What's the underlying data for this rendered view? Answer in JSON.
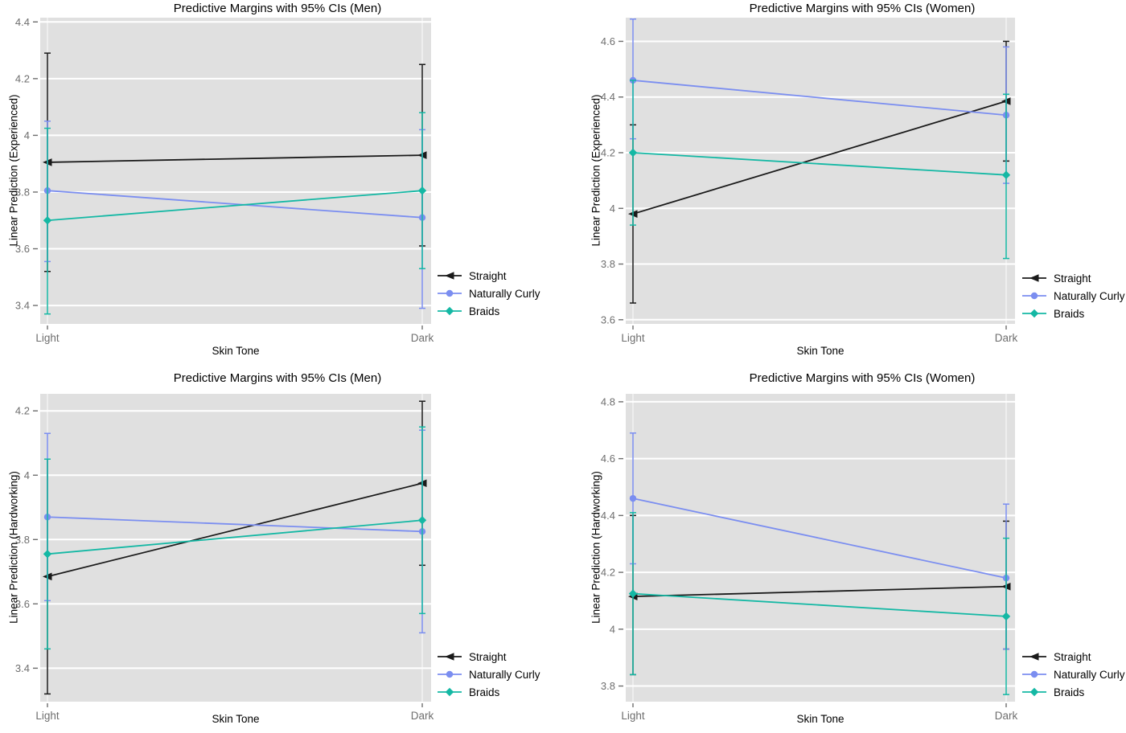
{
  "figure": {
    "background": "#ffffff",
    "plot_background": "#e0e0e0",
    "gridline_color": "#ffffff",
    "tick_label_color": "#6e6e6e",
    "text_color": "#000000"
  },
  "legend": {
    "items": [
      {
        "label": "Straight",
        "color": "#1a1a1a",
        "marker": "triangle-left"
      },
      {
        "label": "Naturally Curly",
        "color": "#7b8ef0",
        "marker": "circle"
      },
      {
        "label": "Braids",
        "color": "#14b8a4",
        "marker": "diamond"
      }
    ]
  },
  "chart_data": [
    {
      "type": "line",
      "title": "Predictive Margins with 95% CIs (Men)",
      "xlabel": "Skin Tone",
      "ylabel": "Linear Prediction (Experienced)",
      "categories": [
        "Light",
        "Dark"
      ],
      "yticks": [
        3.4,
        3.6,
        3.8,
        4.0,
        4.2,
        4.4
      ],
      "ylim": [
        3.335,
        4.415
      ],
      "grid": true,
      "legend_position": "right",
      "error_bars": "95% CI",
      "series": [
        {
          "name": "Straight",
          "color": "#1a1a1a",
          "marker": "triangle-left",
          "values": [
            3.905,
            3.93
          ],
          "ci_low": [
            3.52,
            3.61
          ],
          "ci_high": [
            4.29,
            4.25
          ]
        },
        {
          "name": "Naturally Curly",
          "color": "#7b8ef0",
          "marker": "circle",
          "values": [
            3.805,
            3.71
          ],
          "ci_low": [
            3.555,
            3.39
          ],
          "ci_high": [
            4.05,
            4.02
          ]
        },
        {
          "name": "Braids",
          "color": "#14b8a4",
          "marker": "diamond",
          "values": [
            3.7,
            3.805
          ],
          "ci_low": [
            3.37,
            3.53
          ],
          "ci_high": [
            4.025,
            4.08
          ]
        }
      ]
    },
    {
      "type": "line",
      "title": "Predictive Margins with 95% CIs (Women)",
      "xlabel": "Skin Tone",
      "ylabel": "Linear Prediction (Experienced)",
      "categories": [
        "Light",
        "Dark"
      ],
      "yticks": [
        3.6,
        3.8,
        4.0,
        4.2,
        4.4,
        4.6
      ],
      "ylim": [
        3.585,
        4.685
      ],
      "grid": true,
      "legend_position": "right",
      "error_bars": "95% CI",
      "series": [
        {
          "name": "Straight",
          "color": "#1a1a1a",
          "marker": "triangle-left",
          "values": [
            3.98,
            4.385
          ],
          "ci_low": [
            3.66,
            4.17
          ],
          "ci_high": [
            4.3,
            4.6
          ]
        },
        {
          "name": "Naturally Curly",
          "color": "#7b8ef0",
          "marker": "circle",
          "values": [
            4.46,
            4.335
          ],
          "ci_low": [
            4.25,
            4.09
          ],
          "ci_high": [
            4.68,
            4.58
          ]
        },
        {
          "name": "Braids",
          "color": "#14b8a4",
          "marker": "diamond",
          "values": [
            4.2,
            4.12
          ],
          "ci_low": [
            3.94,
            3.82
          ],
          "ci_high": [
            4.46,
            4.41
          ]
        }
      ]
    },
    {
      "type": "line",
      "title": "Predictive Margins with 95% CIs (Men)",
      "xlabel": "Skin Tone",
      "ylabel": "Linear Prediction (Hardworking)",
      "categories": [
        "Light",
        "Dark"
      ],
      "yticks": [
        3.4,
        3.6,
        3.8,
        4.0,
        4.2
      ],
      "ylim": [
        3.296,
        4.253
      ],
      "grid": true,
      "legend_position": "right",
      "error_bars": "95% CI",
      "series": [
        {
          "name": "Straight",
          "color": "#1a1a1a",
          "marker": "triangle-left",
          "values": [
            3.685,
            3.975
          ],
          "ci_low": [
            3.32,
            3.72
          ],
          "ci_high": [
            4.05,
            4.23
          ]
        },
        {
          "name": "Naturally Curly",
          "color": "#7b8ef0",
          "marker": "circle",
          "values": [
            3.87,
            3.825
          ],
          "ci_low": [
            3.61,
            3.51
          ],
          "ci_high": [
            4.13,
            4.14
          ]
        },
        {
          "name": "Braids",
          "color": "#14b8a4",
          "marker": "diamond",
          "values": [
            3.755,
            3.86
          ],
          "ci_low": [
            3.46,
            3.57
          ],
          "ci_high": [
            4.05,
            4.15
          ]
        }
      ]
    },
    {
      "type": "line",
      "title": "Predictive Margins with 95% CIs (Women)",
      "xlabel": "Skin Tone",
      "ylabel": "Linear Prediction (Hardworking)",
      "categories": [
        "Light",
        "Dark"
      ],
      "yticks": [
        3.8,
        4.0,
        4.2,
        4.4,
        4.6,
        4.8
      ],
      "ylim": [
        3.745,
        4.828
      ],
      "grid": true,
      "legend_position": "right",
      "error_bars": "95% CI",
      "series": [
        {
          "name": "Straight",
          "color": "#1a1a1a",
          "marker": "triangle-left",
          "values": [
            4.115,
            4.15
          ],
          "ci_low": [
            3.84,
            3.93
          ],
          "ci_high": [
            4.4,
            4.38
          ]
        },
        {
          "name": "Naturally Curly",
          "color": "#7b8ef0",
          "marker": "circle",
          "values": [
            4.46,
            4.18
          ],
          "ci_low": [
            4.23,
            3.93
          ],
          "ci_high": [
            4.69,
            4.44
          ]
        },
        {
          "name": "Braids",
          "color": "#14b8a4",
          "marker": "diamond",
          "values": [
            4.125,
            4.045
          ],
          "ci_low": [
            3.84,
            3.77
          ],
          "ci_high": [
            4.41,
            4.32
          ]
        }
      ]
    }
  ]
}
